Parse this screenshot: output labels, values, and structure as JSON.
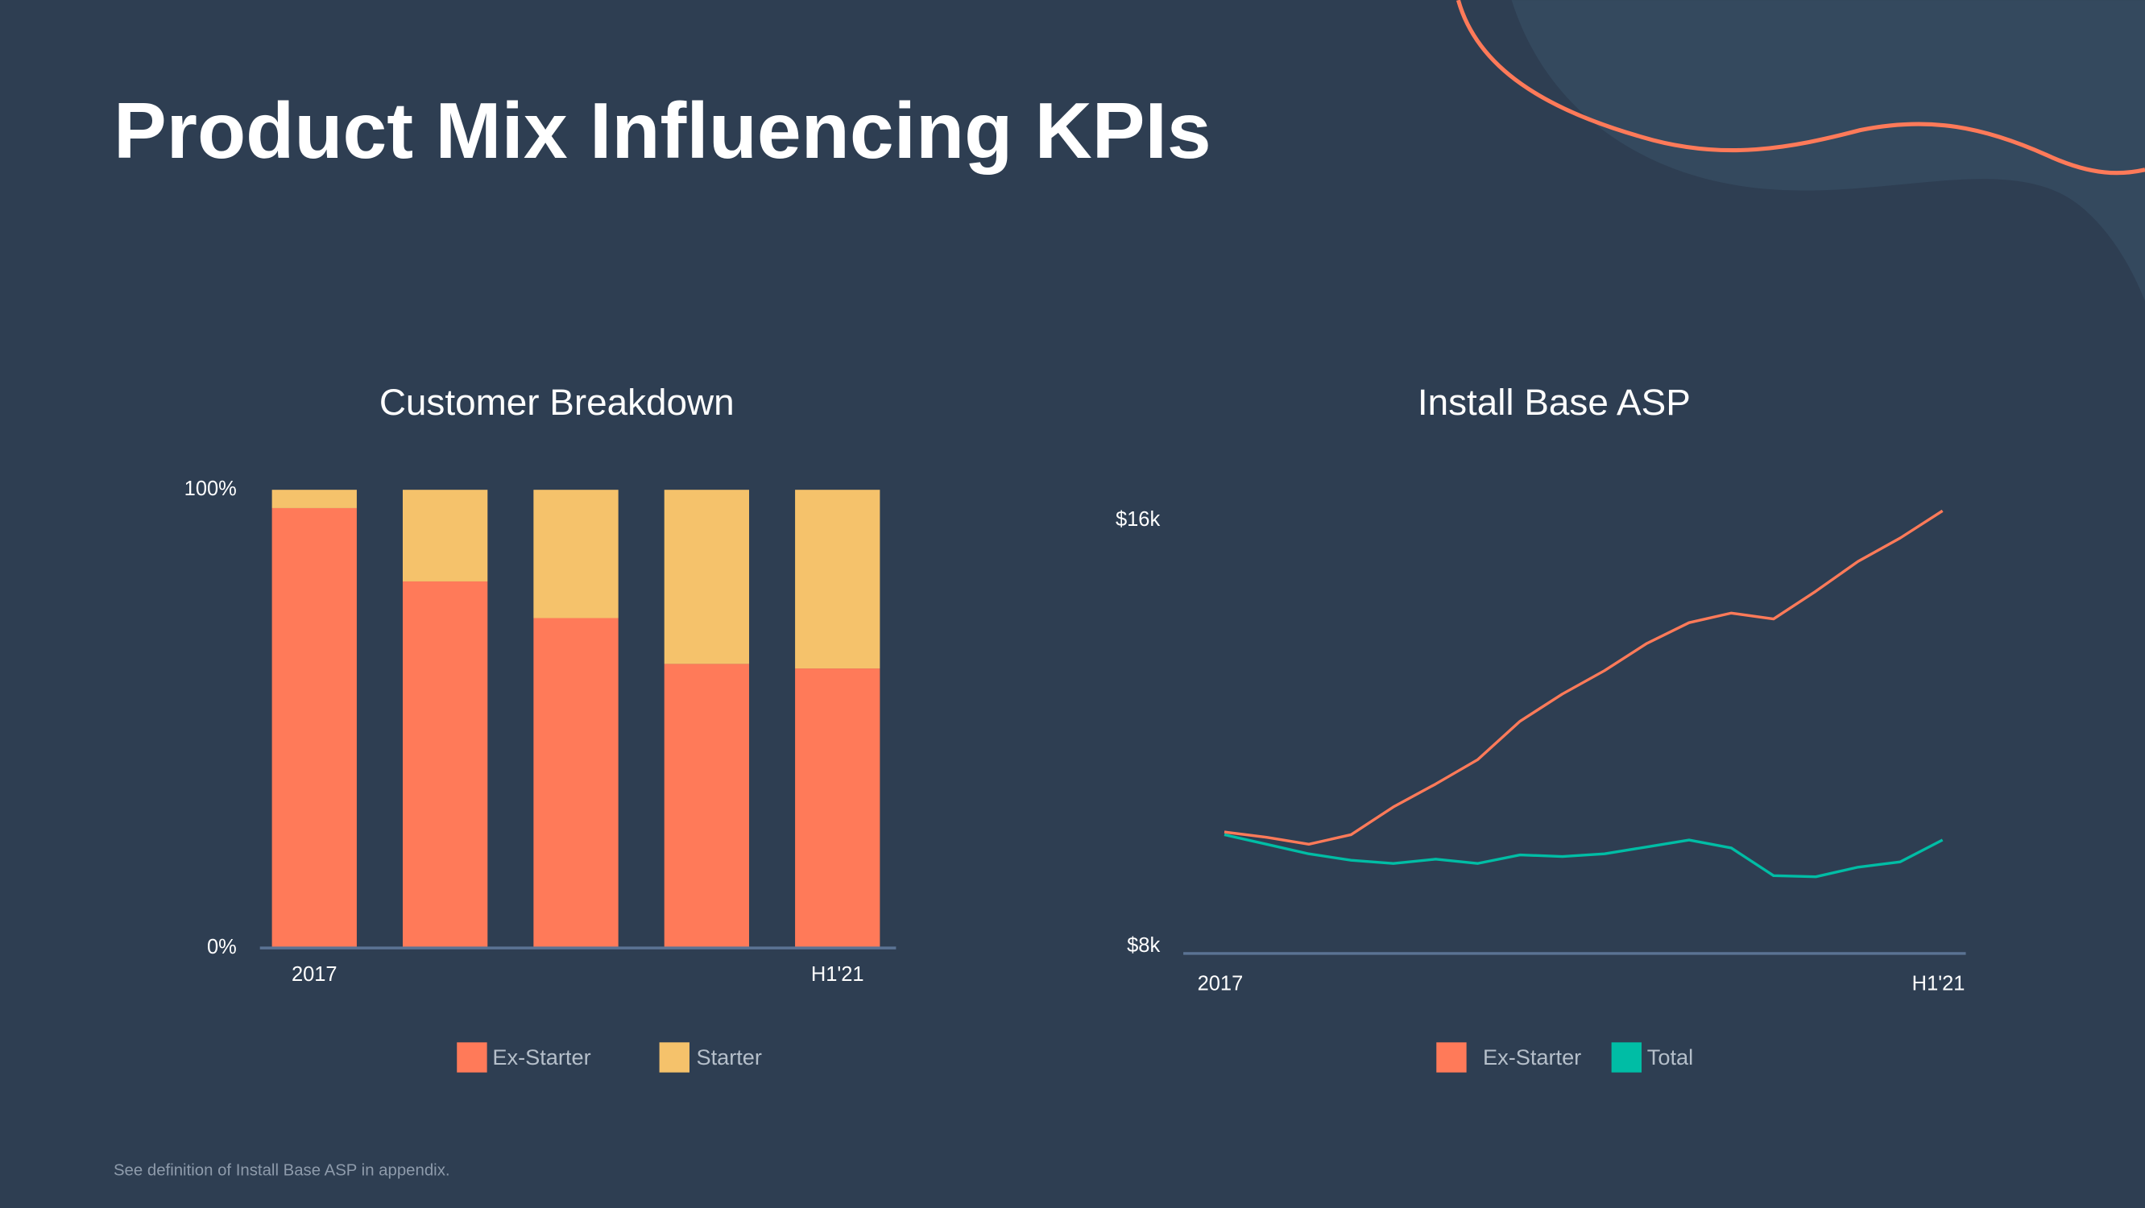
{
  "title": "Product Mix Influencing KPIs",
  "footnote": "See definition of Install Base ASP in appendix.",
  "chart_data": [
    {
      "type": "bar",
      "stacked": true,
      "title": "Customer Breakdown",
      "categories": [
        "2017",
        null,
        null,
        null,
        "H1'21"
      ],
      "series": [
        {
          "name": "Ex-Starter",
          "color": "#ff7a59",
          "values": [
            96,
            80,
            72,
            62,
            61
          ]
        },
        {
          "name": "Starter",
          "color": "#f5c26b",
          "values": [
            4,
            20,
            28,
            38,
            39
          ]
        }
      ],
      "ylim": [
        0,
        100
      ],
      "yticks": [
        {
          "value": 0,
          "label": "0%"
        },
        {
          "value": 100,
          "label": "100%"
        }
      ],
      "grid": false
    },
    {
      "type": "line",
      "title": "Install Base ASP",
      "categories": [
        "2017",
        null,
        null,
        null,
        null,
        null,
        null,
        null,
        null,
        null,
        null,
        null,
        null,
        null,
        null,
        null,
        null,
        "H1'21"
      ],
      "series": [
        {
          "name": "Ex-Starter",
          "color": "#ff7a59",
          "values": [
            10150,
            10050,
            9920,
            10100,
            10620,
            11050,
            11510,
            12230,
            12740,
            13180,
            13690,
            14080,
            14260,
            14150,
            14670,
            15230,
            15670,
            16180
          ]
        },
        {
          "name": "Total",
          "color": "#00bda5",
          "values": [
            10100,
            9920,
            9740,
            9620,
            9560,
            9640,
            9560,
            9720,
            9690,
            9740,
            9870,
            10000,
            9850,
            9330,
            9310,
            9490,
            9590,
            10000
          ]
        }
      ],
      "ylim": [
        7870,
        16600
      ],
      "yticks": [
        {
          "value": 8000,
          "label": "$8k"
        },
        {
          "value": 16000,
          "label": "$16k"
        }
      ],
      "grid": false
    }
  ]
}
